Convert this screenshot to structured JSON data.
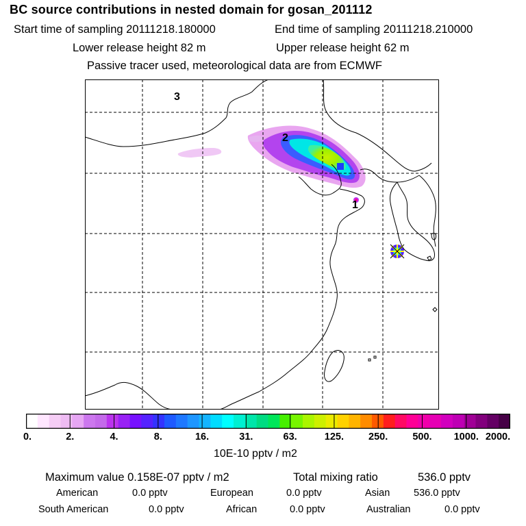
{
  "title": "BC  source contributions in nested domain for gosan_201112",
  "header": {
    "start_label": "Start time of sampling 20111218.180000",
    "end_label": "End time of sampling 20111218.210000",
    "lower_label": "Lower release height   82 m",
    "upper_label": "Upper release height   62 m",
    "tracer_note": "Passive tracer used, meteorological data are from ECMWF"
  },
  "map": {
    "trajectory_labels": [
      "1",
      "2",
      "3"
    ],
    "colors": {
      "coast": "#000000",
      "grid": "#000000",
      "receptor": "#ffff00"
    }
  },
  "colorbar": {
    "ticks": [
      "0.",
      "2.",
      "4.",
      "8.",
      "16.",
      "31.",
      "63.",
      "125.",
      "250.",
      "500.",
      "1000.",
      "2000."
    ],
    "colors": [
      "#ffffff",
      "#ffe6ff",
      "#f5cdf5",
      "#eebbf3",
      "#e6a6f3",
      "#cc77ee",
      "#c46aea",
      "#bb33ee",
      "#9922f5",
      "#7711ff",
      "#5522ff",
      "#3333ff",
      "#1e5aff",
      "#1e78ff",
      "#1e96ff",
      "#14b4ff",
      "#00dcff",
      "#00ffff",
      "#00f0d2",
      "#00e6aa",
      "#00dc82",
      "#00e65a",
      "#46f000",
      "#78f500",
      "#aaf500",
      "#cdf000",
      "#ebeb00",
      "#ffd200",
      "#ffb400",
      "#ff8c00",
      "#ff5a00",
      "#ff1e1e",
      "#ff0a64",
      "#ff0096",
      "#f000aa",
      "#e600b4",
      "#d200be",
      "#be00b4",
      "#a00096",
      "#82007d",
      "#640064",
      "#460046"
    ],
    "unit": "10E-10 pptv / m2"
  },
  "summary": {
    "max_label": "Maximum value  0.158E-07 pptv / m2",
    "total_label": "Total mixing ratio",
    "total_value": "536.0 pptv",
    "american": "American",
    "american_value": "0.0 pptv",
    "european": "European",
    "european_value": "0.0 pptv",
    "asian": "Asian",
    "asian_value": "536.0 pptv",
    "south_american": "South American",
    "south_american_value": "0.0 pptv",
    "african": "African",
    "african_value": "0.0 pptv",
    "australian": "Australian",
    "australian_value": "0.0 pptv"
  }
}
